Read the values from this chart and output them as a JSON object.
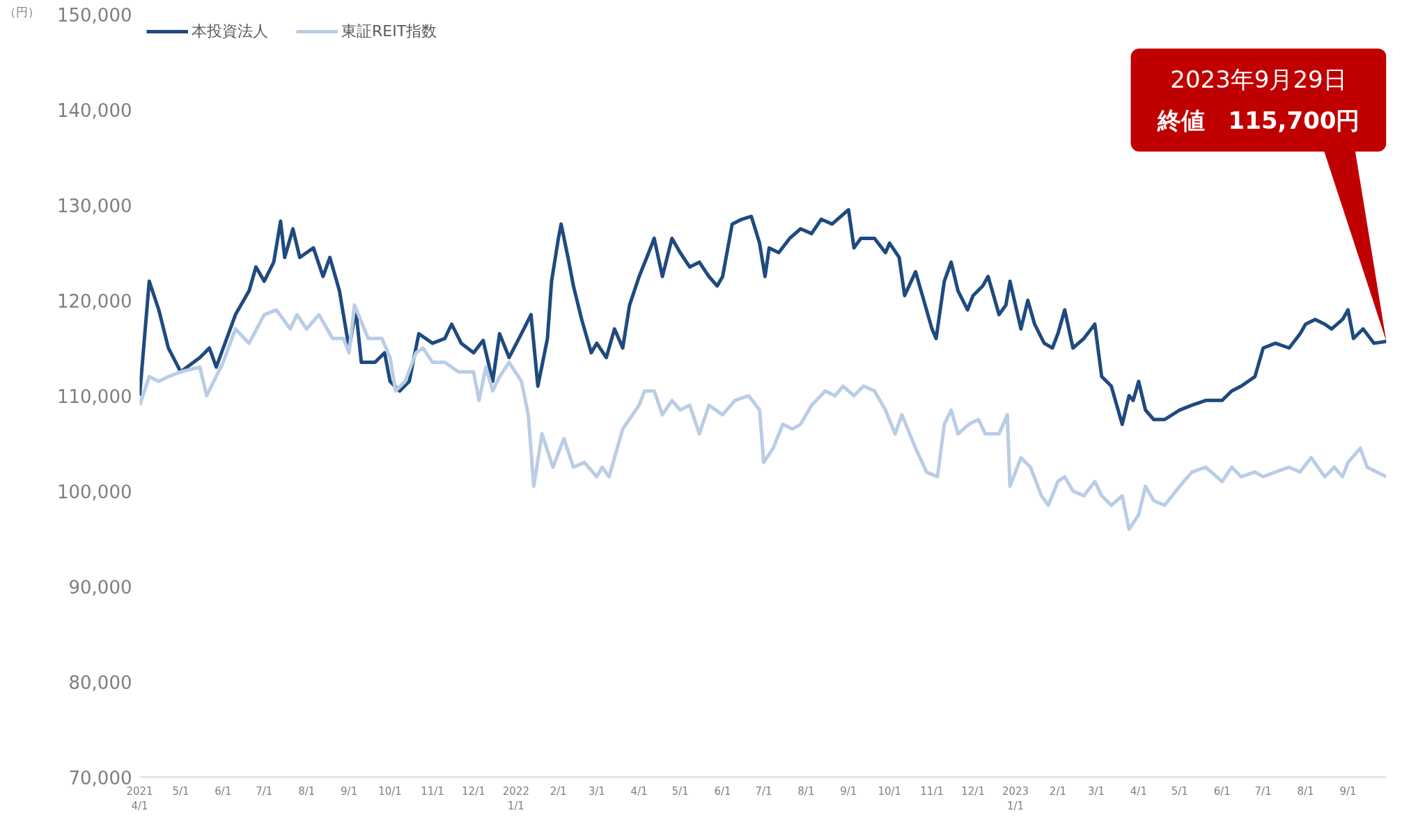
{
  "chart_data": {
    "type": "line",
    "ylabel": "（円）",
    "legend": "top left",
    "grid": false,
    "line_style": "solid",
    "marker": "none",
    "xlim": [
      "2021-04-01",
      "2023-09-29"
    ],
    "ylim": [
      70000,
      150000
    ],
    "yticks": [
      {
        "value": 70000,
        "label": "70,000"
      },
      {
        "value": 80000,
        "label": "80,000"
      },
      {
        "value": 90000,
        "label": "90,000"
      },
      {
        "value": 100000,
        "label": "100,000"
      },
      {
        "value": 110000,
        "label": "110,000"
      },
      {
        "value": 120000,
        "label": "120,000"
      },
      {
        "value": 130000,
        "label": "130,000"
      },
      {
        "value": 140000,
        "label": "140,000"
      },
      {
        "value": 150000,
        "label": "150,000"
      }
    ],
    "xticks": [
      {
        "value": "2021-04-01",
        "label": "2021\n4/1"
      },
      {
        "value": "2021-05-01",
        "label": "5/1"
      },
      {
        "value": "2021-06-01",
        "label": "6/1"
      },
      {
        "value": "2021-07-01",
        "label": "7/1"
      },
      {
        "value": "2021-08-01",
        "label": "8/1"
      },
      {
        "value": "2021-09-01",
        "label": "9/1"
      },
      {
        "value": "2021-10-01",
        "label": "10/1"
      },
      {
        "value": "2021-11-01",
        "label": "11/1"
      },
      {
        "value": "2021-12-01",
        "label": "12/1"
      },
      {
        "value": "2022-01-01",
        "label": "2022\n1/1"
      },
      {
        "value": "2022-02-01",
        "label": "2/1"
      },
      {
        "value": "2022-03-01",
        "label": "3/1"
      },
      {
        "value": "2022-04-01",
        "label": "4/1"
      },
      {
        "value": "2022-05-01",
        "label": "5/1"
      },
      {
        "value": "2022-06-01",
        "label": "6/1"
      },
      {
        "value": "2022-07-01",
        "label": "7/1"
      },
      {
        "value": "2022-08-01",
        "label": "8/1"
      },
      {
        "value": "2022-09-01",
        "label": "9/1"
      },
      {
        "value": "2022-10-01",
        "label": "10/1"
      },
      {
        "value": "2022-11-01",
        "label": "11/1"
      },
      {
        "value": "2022-12-01",
        "label": "12/1"
      },
      {
        "value": "2023-01-01",
        "label": "2023\n1/1"
      },
      {
        "value": "2023-02-01",
        "label": "2/1"
      },
      {
        "value": "2023-03-01",
        "label": "3/1"
      },
      {
        "value": "2023-04-01",
        "label": "4/1"
      },
      {
        "value": "2023-05-01",
        "label": "5/1"
      },
      {
        "value": "2023-06-01",
        "label": "6/1"
      },
      {
        "value": "2023-07-01",
        "label": "7/1"
      },
      {
        "value": "2023-08-01",
        "label": "8/1"
      },
      {
        "value": "2023-09-01",
        "label": "9/1"
      }
    ],
    "series": [
      {
        "name": "本投資法人",
        "color": "#1f4a7e",
        "x": [
          "2021-04-01",
          "2021-04-08",
          "2021-04-15",
          "2021-04-22",
          "2021-05-01",
          "2021-05-15",
          "2021-05-22",
          "2021-05-27",
          "2021-06-10",
          "2021-06-20",
          "2021-06-25",
          "2021-07-01",
          "2021-07-08",
          "2021-07-13",
          "2021-07-16",
          "2021-07-22",
          "2021-07-27",
          "2021-08-01",
          "2021-08-06",
          "2021-08-13",
          "2021-08-18",
          "2021-08-25",
          "2021-09-01",
          "2021-09-06",
          "2021-09-10",
          "2021-09-20",
          "2021-09-27",
          "2021-10-01",
          "2021-10-08",
          "2021-10-15",
          "2021-10-22",
          "2021-11-01",
          "2021-11-10",
          "2021-11-15",
          "2021-11-22",
          "2021-12-01",
          "2021-12-08",
          "2021-12-15",
          "2021-12-20",
          "2021-12-27",
          "2022-01-05",
          "2022-01-12",
          "2022-01-17",
          "2022-01-24",
          "2022-01-27",
          "2022-02-01",
          "2022-02-03",
          "2022-02-08",
          "2022-02-12",
          "2022-02-18",
          "2022-02-25",
          "2022-03-01",
          "2022-03-08",
          "2022-03-14",
          "2022-03-20",
          "2022-03-25",
          "2022-04-01",
          "2022-04-08",
          "2022-04-12",
          "2022-04-18",
          "2022-04-25",
          "2022-05-01",
          "2022-05-08",
          "2022-05-15",
          "2022-05-22",
          "2022-05-28",
          "2022-06-01",
          "2022-06-08",
          "2022-06-15",
          "2022-06-22",
          "2022-06-28",
          "2022-07-02",
          "2022-07-05",
          "2022-07-12",
          "2022-07-20",
          "2022-07-28",
          "2022-08-05",
          "2022-08-12",
          "2022-08-20",
          "2022-08-28",
          "2022-09-01",
          "2022-09-05",
          "2022-09-10",
          "2022-09-20",
          "2022-09-28",
          "2022-10-01",
          "2022-10-08",
          "2022-10-12",
          "2022-10-20",
          "2022-10-25",
          "2022-11-01",
          "2022-11-04",
          "2022-11-10",
          "2022-11-15",
          "2022-11-20",
          "2022-11-27",
          "2022-12-01",
          "2022-12-08",
          "2022-12-12",
          "2022-12-20",
          "2022-12-25",
          "2022-12-28",
          "2023-01-05",
          "2023-01-10",
          "2023-01-15",
          "2023-01-22",
          "2023-01-28",
          "2023-02-01",
          "2023-02-06",
          "2023-02-12",
          "2023-02-20",
          "2023-02-28",
          "2023-03-05",
          "2023-03-12",
          "2023-03-20",
          "2023-03-25",
          "2023-03-28",
          "2023-04-01",
          "2023-04-06",
          "2023-04-12",
          "2023-04-20",
          "2023-05-01",
          "2023-05-10",
          "2023-05-20",
          "2023-06-01",
          "2023-06-08",
          "2023-06-15",
          "2023-06-25",
          "2023-07-01",
          "2023-07-10",
          "2023-07-20",
          "2023-07-28",
          "2023-08-01",
          "2023-08-08",
          "2023-08-15",
          "2023-08-20",
          "2023-08-28",
          "2023-09-01",
          "2023-09-05",
          "2023-09-12",
          "2023-09-20",
          "2023-09-29"
        ],
        "values": [
          110000,
          122000,
          119000,
          115000,
          112500,
          114000,
          115000,
          113000,
          118500,
          121000,
          123500,
          122000,
          124000,
          128300,
          124500,
          127500,
          124500,
          125000,
          125500,
          122500,
          124500,
          121000,
          115000,
          119000,
          113500,
          113500,
          114500,
          111500,
          110500,
          111500,
          116500,
          115500,
          116000,
          117500,
          115500,
          114500,
          115800,
          111500,
          116500,
          114000,
          116500,
          118500,
          111000,
          116000,
          122000,
          126500,
          128000,
          124500,
          121500,
          118000,
          114500,
          115500,
          114000,
          117000,
          115000,
          119500,
          122500,
          125000,
          126500,
          122500,
          126500,
          125000,
          123500,
          124000,
          122500,
          121500,
          122500,
          128000,
          128500,
          128800,
          126000,
          122500,
          125500,
          125000,
          126500,
          127500,
          127000,
          128500,
          128000,
          129000,
          129500,
          125500,
          126500,
          126500,
          125000,
          126000,
          124500,
          120500,
          123000,
          120500,
          117000,
          116000,
          122000,
          124000,
          121000,
          119000,
          120500,
          121500,
          122500,
          118500,
          119500,
          122000,
          117000,
          120000,
          117500,
          115500,
          115000,
          116500,
          119000,
          115000,
          116000,
          117500,
          112000,
          111000,
          107000,
          110000,
          109500,
          111500,
          108500,
          107500,
          107500,
          108500,
          109000,
          109500,
          109500,
          110500,
          111000,
          112000,
          115000,
          115500,
          115000,
          116500,
          117500,
          118000,
          117500,
          117000,
          118000,
          119000,
          116000,
          117000,
          115500,
          115700
        ]
      },
      {
        "name": "東証REIT指数",
        "color": "#b9cde5",
        "x": [
          "2021-04-01",
          "2021-04-08",
          "2021-04-15",
          "2021-04-22",
          "2021-05-01",
          "2021-05-15",
          "2021-05-20",
          "2021-06-01",
          "2021-06-10",
          "2021-06-20",
          "2021-07-01",
          "2021-07-10",
          "2021-07-20",
          "2021-07-25",
          "2021-08-01",
          "2021-08-10",
          "2021-08-20",
          "2021-08-28",
          "2021-09-01",
          "2021-09-05",
          "2021-09-15",
          "2021-09-25",
          "2021-10-01",
          "2021-10-05",
          "2021-10-12",
          "2021-10-20",
          "2021-10-25",
          "2021-11-01",
          "2021-11-10",
          "2021-11-20",
          "2021-12-01",
          "2021-12-05",
          "2021-12-10",
          "2021-12-15",
          "2021-12-20",
          "2021-12-27",
          "2022-01-05",
          "2022-01-10",
          "2022-01-14",
          "2022-01-20",
          "2022-01-28",
          "2022-02-05",
          "2022-02-12",
          "2022-02-20",
          "2022-03-01",
          "2022-03-05",
          "2022-03-10",
          "2022-03-20",
          "2022-04-01",
          "2022-04-05",
          "2022-04-12",
          "2022-04-18",
          "2022-04-25",
          "2022-05-01",
          "2022-05-08",
          "2022-05-15",
          "2022-05-22",
          "2022-06-01",
          "2022-06-10",
          "2022-06-20",
          "2022-06-28",
          "2022-07-01",
          "2022-07-08",
          "2022-07-15",
          "2022-07-22",
          "2022-07-28",
          "2022-08-05",
          "2022-08-15",
          "2022-08-22",
          "2022-08-28",
          "2022-09-05",
          "2022-09-12",
          "2022-09-20",
          "2022-09-28",
          "2022-10-05",
          "2022-10-10",
          "2022-10-20",
          "2022-10-28",
          "2022-11-05",
          "2022-11-10",
          "2022-11-15",
          "2022-11-20",
          "2022-11-28",
          "2022-12-05",
          "2022-12-10",
          "2022-12-20",
          "2022-12-26",
          "2022-12-28",
          "2023-01-05",
          "2023-01-12",
          "2023-01-20",
          "2023-01-25",
          "2023-02-01",
          "2023-02-06",
          "2023-02-12",
          "2023-02-20",
          "2023-02-28",
          "2023-03-05",
          "2023-03-12",
          "2023-03-20",
          "2023-03-25",
          "2023-04-01",
          "2023-04-06",
          "2023-04-12",
          "2023-04-20",
          "2023-05-01",
          "2023-05-10",
          "2023-05-20",
          "2023-06-01",
          "2023-06-08",
          "2023-06-15",
          "2023-06-25",
          "2023-07-01",
          "2023-07-10",
          "2023-07-20",
          "2023-07-28",
          "2023-08-05",
          "2023-08-15",
          "2023-08-22",
          "2023-08-28",
          "2023-09-01",
          "2023-09-10",
          "2023-09-15",
          "2023-09-29"
        ],
        "values": [
          109000,
          112000,
          111500,
          112000,
          112500,
          113000,
          110000,
          113500,
          117000,
          115500,
          118500,
          119000,
          117000,
          118500,
          117000,
          118500,
          116000,
          116000,
          114500,
          119500,
          116000,
          116000,
          114000,
          110500,
          111500,
          114500,
          115000,
          113500,
          113500,
          112500,
          112500,
          109500,
          113000,
          110500,
          112000,
          113500,
          111500,
          108000,
          100500,
          106000,
          102500,
          105500,
          102500,
          103000,
          101500,
          102500,
          101500,
          106500,
          109000,
          110500,
          110500,
          108000,
          109500,
          108500,
          109000,
          106000,
          109000,
          108000,
          109500,
          110000,
          108500,
          103000,
          104500,
          107000,
          106500,
          107000,
          109000,
          110500,
          110000,
          111000,
          110000,
          111000,
          110500,
          108500,
          106000,
          108000,
          104500,
          102000,
          101500,
          107000,
          108500,
          106000,
          107000,
          107500,
          106000,
          106000,
          108000,
          100500,
          103500,
          102500,
          99500,
          98500,
          101000,
          101500,
          100000,
          99500,
          101000,
          99500,
          98500,
          99500,
          96000,
          97500,
          100500,
          99000,
          98500,
          100500,
          102000,
          102500,
          101000,
          102500,
          101500,
          102000,
          101500,
          102000,
          102500,
          102000,
          103500,
          101500,
          102500,
          101500,
          103000,
          104500,
          102500,
          101500
        ]
      }
    ],
    "annotations": [
      "2023年9月29日",
      {
        "text": "終値　115,700円",
        "x": "2023-09-29",
        "y": 115700
      }
    ]
  }
}
